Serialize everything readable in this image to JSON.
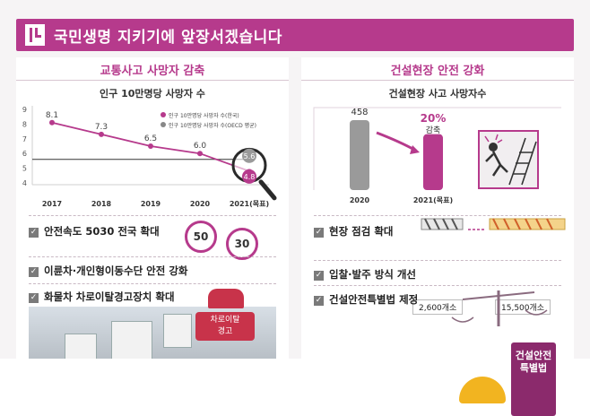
{
  "banner": {
    "title": "국민생명 지키기에 앞장서겠습니다"
  },
  "left": {
    "section_title": "교통사고 사망자 감축",
    "chart_title": "인구 10만명당 사망자 수",
    "chart_data": {
      "type": "line",
      "x": [
        "2017",
        "2018",
        "2019",
        "2020",
        "2021(목표)"
      ],
      "series": [
        {
          "name": "인구 10만명당 사망자 수(한국)",
          "values": [
            8.1,
            7.3,
            6.5,
            6.0,
            4.8
          ],
          "value_labels": [
            "8.1",
            "7.3",
            "6.5",
            "6.0",
            "4.8"
          ]
        },
        {
          "name": "인구 10만명당 사망자 수(OECD 평균)",
          "values": [
            5.6,
            5.6,
            5.6,
            5.6,
            5.6
          ],
          "value_labels": [
            "5.6"
          ]
        }
      ],
      "y_ticks": [
        "9",
        "8",
        "7",
        "6",
        "5",
        "4"
      ],
      "ylim": [
        4,
        9
      ],
      "legend_position": "top-right",
      "colors": {
        "korea": "#b63a8c",
        "oecd": "#888888"
      }
    },
    "items": [
      {
        "label": "안전속도 5030 전국 확대"
      },
      {
        "label": "이륜차·개인형이동수단 안전 강화"
      },
      {
        "label": "화물차 차로이탈경고장치 확대"
      }
    ],
    "speed_signs": [
      "50",
      "30"
    ],
    "warning_label": "차로이탈\n경고"
  },
  "right": {
    "section_title": "건설현장 안전 강화",
    "chart_title": "건설현장 사고 사망자수",
    "chart_data": {
      "type": "bar",
      "categories": [
        "2020",
        "2021(목표)"
      ],
      "values": [
        458,
        366
      ],
      "value_labels": [
        "458",
        ""
      ],
      "annotation": {
        "value": "20%",
        "label": "감축"
      },
      "colors": {
        "2020": "#9a9a9a",
        "2021": "#b63a8c"
      }
    },
    "items": [
      {
        "label": "현장 점검 확대"
      },
      {
        "label": "입찰·발주 방식 개선"
      },
      {
        "label": "건설안전특별법 제정"
      }
    ],
    "inspections": [
      {
        "label": "2,600개소"
      },
      {
        "label": "15,500개소"
      }
    ],
    "book_label": "건설안전\n특별법"
  },
  "theme": {
    "accent": "#b63a8c",
    "grey": "#9a9a9a"
  }
}
